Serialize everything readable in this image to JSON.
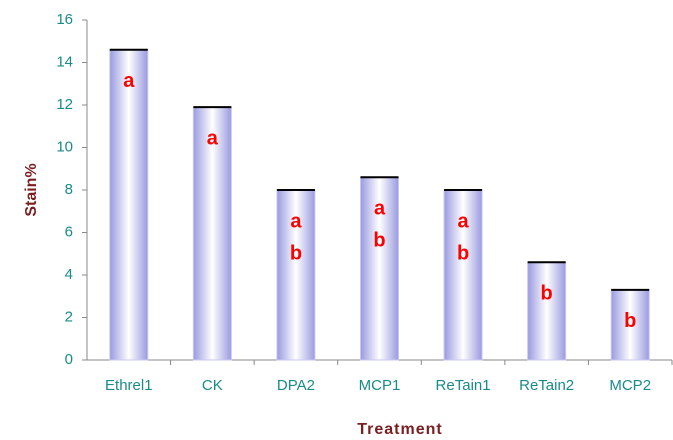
{
  "chart_data": {
    "type": "bar",
    "xlabel": "Treatment",
    "ylabel": "Stain%",
    "categories": [
      "Ethrel1",
      "CK",
      "DPA2",
      "MCP1",
      "ReTain1",
      "ReTain2",
      "MCP2"
    ],
    "values": [
      14.6,
      11.9,
      8.0,
      8.6,
      8.0,
      4.6,
      3.3
    ],
    "annotations": [
      [
        "a"
      ],
      [
        "a"
      ],
      [
        "a",
        "b"
      ],
      [
        "a",
        "b"
      ],
      [
        "a",
        "b"
      ],
      [
        "b"
      ],
      [
        "b"
      ]
    ],
    "color": "#c8c8f2",
    "ylim": [
      0,
      16
    ],
    "yticks": [
      0,
      2,
      4,
      6,
      8,
      10,
      12,
      14,
      16
    ],
    "grid": false
  }
}
